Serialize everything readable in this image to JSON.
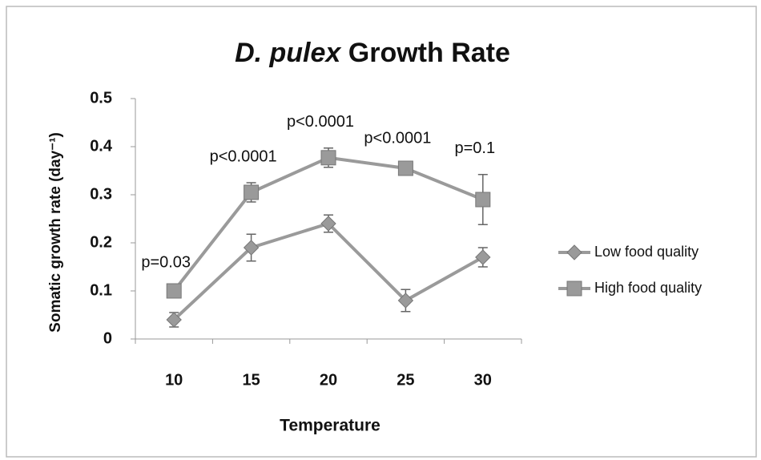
{
  "chart_data": {
    "type": "line",
    "title": [
      "D. pulex",
      "Growth Rate"
    ],
    "xlabel": "Temperature",
    "ylabel": "Somatic growth rate (day⁻¹)",
    "categories": [
      "10",
      "15",
      "20",
      "25",
      "30"
    ],
    "series": [
      {
        "name": "Low food quality",
        "color": "#9a9a9a",
        "marker": "diamond",
        "values": [
          0.04,
          0.19,
          0.24,
          0.08,
          0.17
        ],
        "errors": [
          0.015,
          0.028,
          0.018,
          0.023,
          0.02
        ]
      },
      {
        "name": "High food quality",
        "color": "#9a9a9a",
        "marker": "square",
        "values": [
          0.1,
          0.305,
          0.377,
          0.355,
          0.29
        ],
        "errors": [
          0.005,
          0.02,
          0.02,
          0.008,
          0.052
        ]
      }
    ],
    "annotations": [
      "p=0.03",
      "p<0.0001",
      "p<0.0001",
      "p<0.0001",
      "p=0.1"
    ],
    "ylim": [
      0,
      0.5
    ],
    "yticks": [
      0,
      0.1,
      0.2,
      0.3,
      0.4,
      0.5
    ],
    "legend": "right"
  }
}
